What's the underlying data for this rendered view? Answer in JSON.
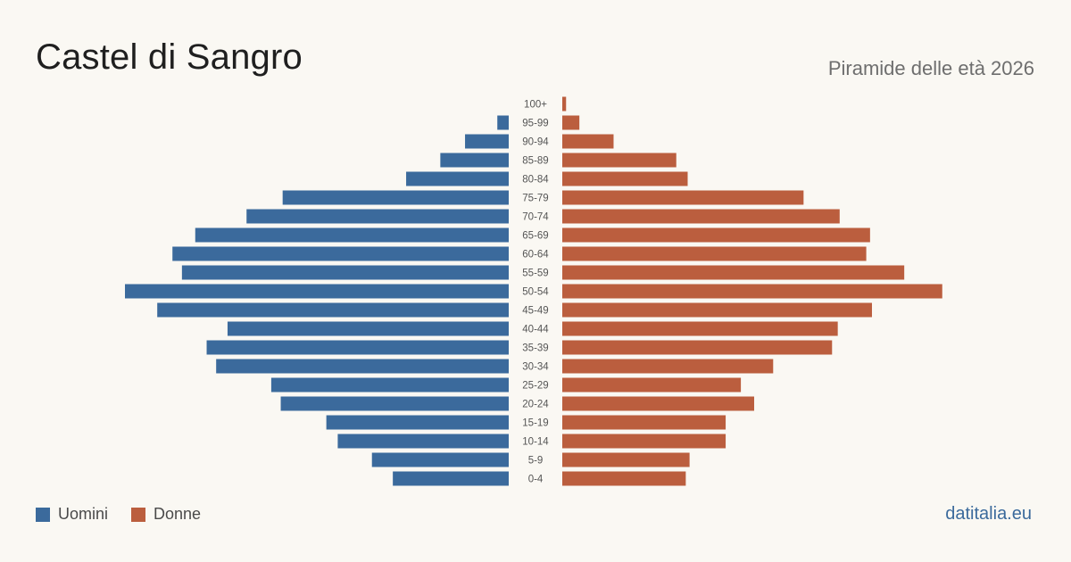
{
  "header": {
    "title": "Castel di Sangro",
    "subtitle": "Piramide delle età 2026"
  },
  "legend": {
    "male_label": "Uomini",
    "female_label": "Donne"
  },
  "footer": {
    "source": "datitalia.eu"
  },
  "colors": {
    "male": "#3b6a9c",
    "female": "#bb5e3e",
    "background": "#faf8f3"
  },
  "chart_data": {
    "type": "bar",
    "orientation": "horizontal",
    "layout": "population-pyramid",
    "categories": [
      "100+",
      "95-99",
      "90-94",
      "85-89",
      "80-84",
      "75-79",
      "70-74",
      "65-69",
      "60-64",
      "55-59",
      "50-54",
      "45-49",
      "40-44",
      "35-39",
      "30-34",
      "25-29",
      "20-24",
      "15-19",
      "10-14",
      "5-9",
      "0-4"
    ],
    "series": [
      {
        "name": "Uomini",
        "values": [
          0,
          6,
          23,
          36,
          54,
          119,
          138,
          165,
          177,
          172,
          202,
          185,
          148,
          159,
          154,
          125,
          120,
          96,
          90,
          72,
          61
        ]
      },
      {
        "name": "Donne",
        "values": [
          2,
          9,
          27,
          60,
          66,
          127,
          146,
          162,
          160,
          180,
          200,
          163,
          145,
          142,
          111,
          94,
          101,
          86,
          86,
          67,
          65
        ]
      }
    ],
    "grid": false,
    "legend_position": "bottom-left"
  }
}
